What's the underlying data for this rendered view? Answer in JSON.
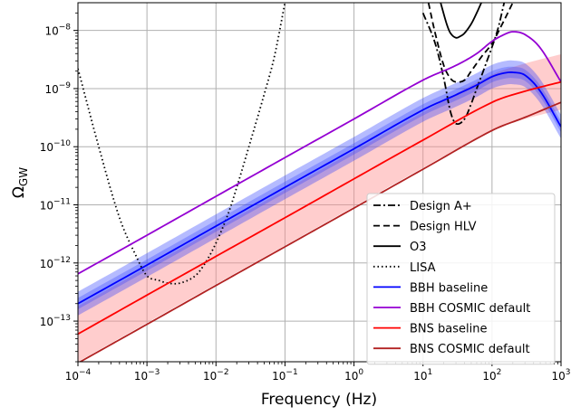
{
  "chart_data": {
    "type": "line",
    "xlabel": "Frequency (Hz)",
    "ylabel_main": "Ω",
    "ylabel_sub": "GW",
    "x_scale": "log",
    "y_scale": "log",
    "xlim": [
      0.0001,
      1000
    ],
    "ylim": [
      2e-14,
      3e-08
    ],
    "grid": true,
    "legend_position": "lower-right",
    "x_ticks": [
      {
        "base": "10",
        "exp": "−4",
        "value": 0.0001
      },
      {
        "base": "10",
        "exp": "−3",
        "value": 0.001
      },
      {
        "base": "10",
        "exp": "−2",
        "value": 0.01
      },
      {
        "base": "10",
        "exp": "−1",
        "value": 0.1
      },
      {
        "base": "10",
        "exp": "0",
        "value": 1
      },
      {
        "base": "10",
        "exp": "1",
        "value": 10
      },
      {
        "base": "10",
        "exp": "2",
        "value": 100
      },
      {
        "base": "10",
        "exp": "3",
        "value": 1000
      }
    ],
    "y_ticks": [
      {
        "base": "10",
        "exp": "−13",
        "value": 1e-13
      },
      {
        "base": "10",
        "exp": "−12",
        "value": 1e-12
      },
      {
        "base": "10",
        "exp": "−11",
        "value": 1e-11
      },
      {
        "base": "10",
        "exp": "−10",
        "value": 1e-10
      },
      {
        "base": "10",
        "exp": "−9",
        "value": 1e-09
      },
      {
        "base": "10",
        "exp": "−8",
        "value": 1e-08
      }
    ],
    "series": [
      {
        "name": "Design A+",
        "color": "#000000",
        "dash": "dashdot",
        "x": [
          10,
          15,
          20,
          25,
          30,
          40,
          50,
          60,
          80,
          120,
          150
        ],
        "y": [
          2e-08,
          6e-09,
          1.5e-09,
          4e-10,
          2.5e-10,
          3e-10,
          5.5e-10,
          1e-09,
          2.5e-09,
          1e-08,
          3e-08
        ]
      },
      {
        "name": "Design HLV",
        "color": "#000000",
        "dash": "dashed",
        "x": [
          12,
          15,
          20,
          25,
          30,
          40,
          50,
          70,
          100,
          150,
          200
        ],
        "y": [
          3e-08,
          9e-09,
          2.5e-09,
          1.5e-09,
          1.3e-09,
          1.4e-09,
          2e-09,
          3.5e-09,
          6e-09,
          1.5e-08,
          3e-08
        ]
      },
      {
        "name": "O3",
        "color": "#000000",
        "dash": "solid",
        "x": [
          18,
          22,
          25,
          30,
          35,
          40,
          50,
          60,
          70
        ],
        "y": [
          3e-08,
          1.3e-08,
          9e-09,
          7.5e-09,
          8e-09,
          9e-09,
          1.3e-08,
          2e-08,
          3e-08
        ]
      },
      {
        "name": "LISA",
        "color": "#000000",
        "dash": "dotted",
        "x": [
          0.0001,
          0.0002,
          0.0004,
          0.0007,
          0.001,
          0.0015,
          0.002,
          0.003,
          0.005,
          0.007,
          0.01,
          0.015,
          0.02,
          0.03,
          0.05,
          0.07,
          0.1
        ],
        "y": [
          2.2e-09,
          1e-10,
          6e-12,
          1.3e-12,
          6e-13,
          5e-13,
          4.5e-13,
          4.5e-13,
          6e-13,
          1e-12,
          2.2e-12,
          7e-12,
          2e-11,
          1e-10,
          8e-10,
          3.5e-09,
          3e-08
        ]
      },
      {
        "name": "BBH baseline",
        "color": "#0000ff",
        "dash": "solid",
        "band": true,
        "band_color": "#2a3bff",
        "band_factor": 1.6,
        "x": [
          0.0001,
          0.001,
          0.01,
          0.1,
          1,
          10,
          30,
          60,
          100,
          150,
          200,
          300,
          500,
          1000
        ],
        "y": [
          2e-13,
          9.2e-13,
          4.3e-12,
          2e-11,
          9.2e-11,
          4.3e-10,
          7.8e-10,
          1.15e-09,
          1.6e-09,
          1.85e-09,
          1.9e-09,
          1.7e-09,
          9e-10,
          2.2e-10
        ]
      },
      {
        "name": "BBH COSMIC default",
        "color": "#9400d3",
        "dash": "solid",
        "x": [
          0.0001,
          0.001,
          0.01,
          0.1,
          1,
          10,
          30,
          60,
          100,
          150,
          200,
          300,
          500,
          1000
        ],
        "y": [
          6.5e-13,
          3e-12,
          1.4e-11,
          6.5e-11,
          3e-10,
          1.4e-09,
          2.5e-09,
          4e-09,
          6.5e-09,
          8.5e-09,
          9.5e-09,
          8.5e-09,
          5e-09,
          1.3e-09
        ]
      },
      {
        "name": "BNS baseline",
        "color": "#ff0000",
        "dash": "solid",
        "band": true,
        "band_color": "#ff9090",
        "band_factor": 3.0,
        "x": [
          0.0001,
          0.001,
          0.01,
          0.1,
          1,
          10,
          100,
          300,
          1000
        ],
        "y": [
          6e-14,
          2.8e-13,
          1.3e-12,
          6e-12,
          2.8e-11,
          1.3e-10,
          5.8e-10,
          9e-10,
          1.3e-09
        ]
      },
      {
        "name": "BNS COSMIC default",
        "color": "#b22222",
        "dash": "solid",
        "x": [
          0.0001,
          0.001,
          0.01,
          0.1,
          1,
          10,
          100,
          300,
          1000
        ],
        "y": [
          1.9e-14,
          8.8e-14,
          4.1e-13,
          1.9e-12,
          8.8e-12,
          4.1e-11,
          1.9e-10,
          3.2e-10,
          5.8e-10
        ]
      }
    ]
  }
}
